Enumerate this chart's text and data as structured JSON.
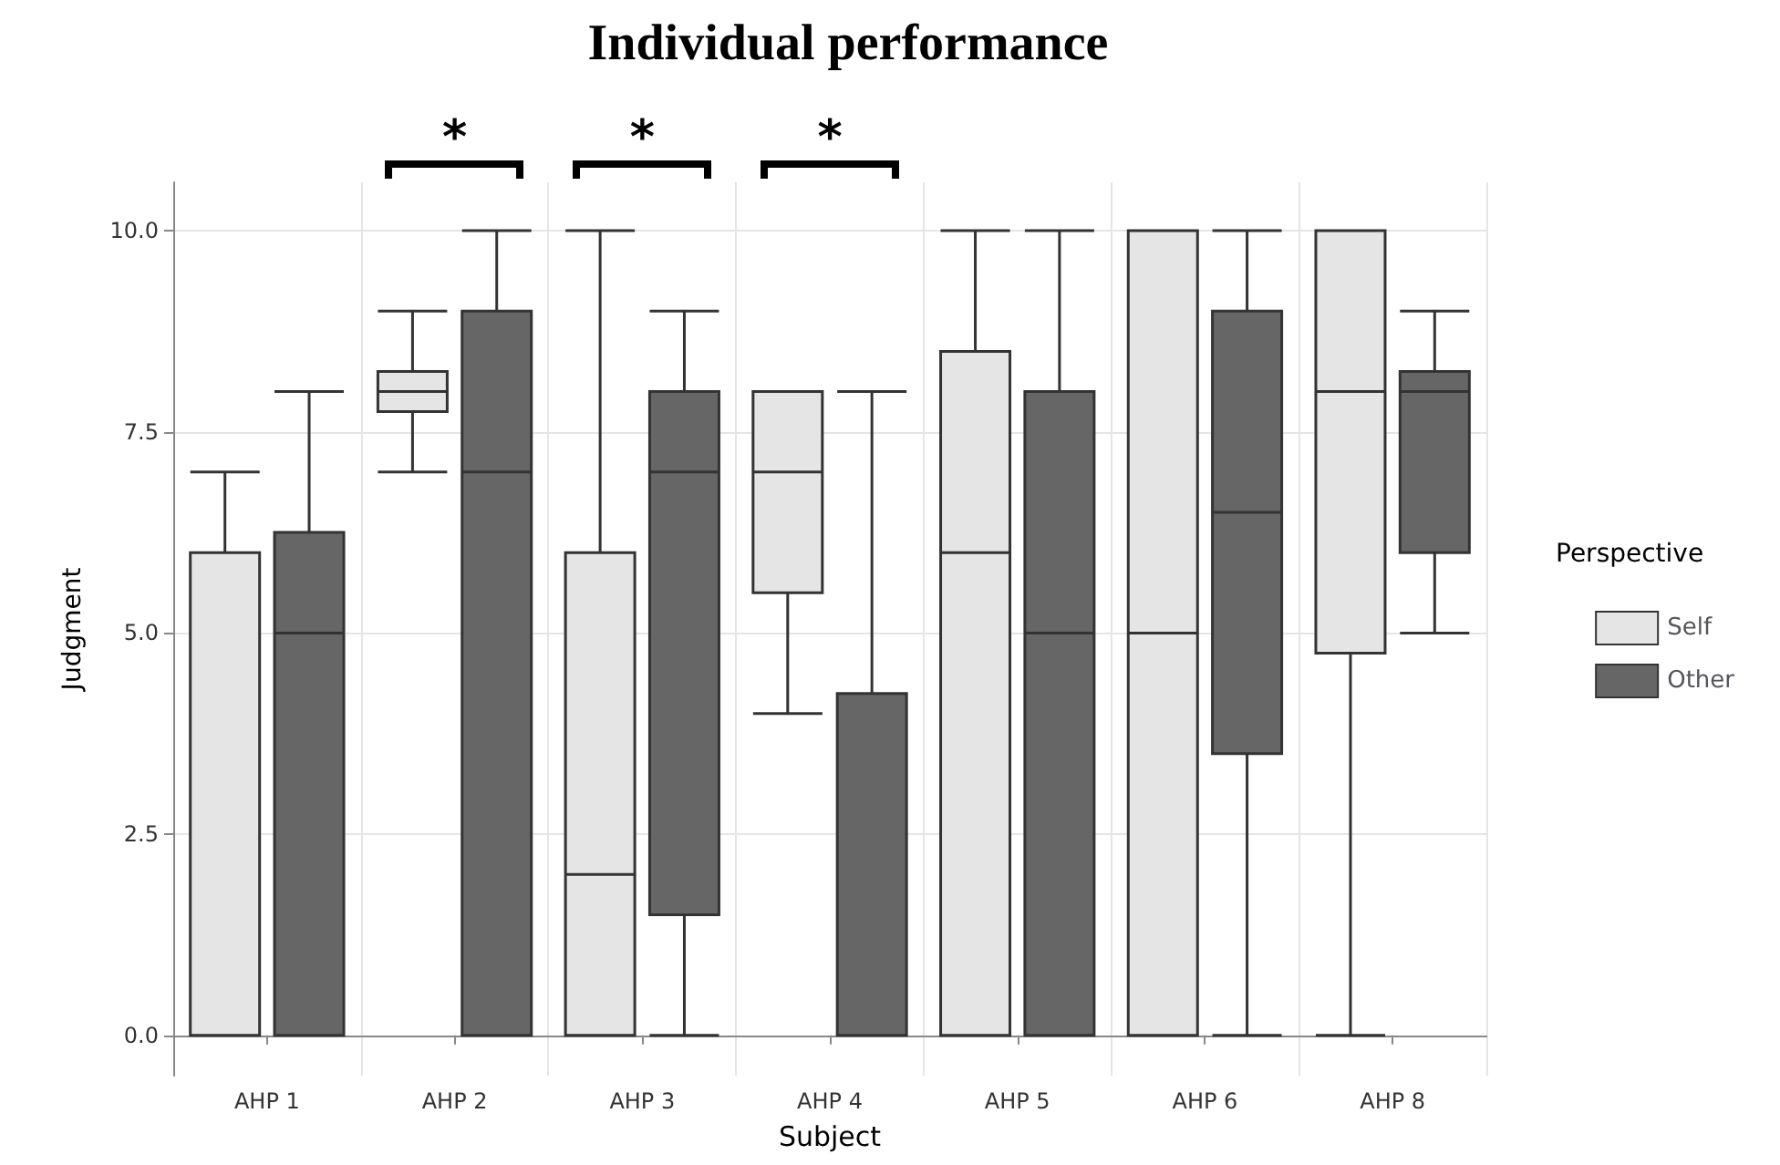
{
  "chart_data": {
    "type": "box",
    "title": "Individual performance",
    "xlabel": "Subject",
    "ylabel": "Judgment",
    "legend_title": "Perspective",
    "legend": "right",
    "grid": true,
    "categories": [
      "AHP 1",
      "AHP 2",
      "AHP 3",
      "AHP 4",
      "AHP 5",
      "AHP 6",
      "AHP 8"
    ],
    "ylim": [
      -0.5,
      10.6
    ],
    "yticks": [
      {
        "value": 0,
        "label": "0.0"
      },
      {
        "value": 2.5,
        "label": "2.5"
      },
      {
        "value": 5,
        "label": "5.0"
      },
      {
        "value": 7.5,
        "label": "7.5"
      },
      {
        "value": 10,
        "label": "10.0"
      }
    ],
    "series": [
      {
        "name": "Self",
        "color": "#e5e5e5",
        "boxes": [
          {
            "low": 0,
            "q1": 0,
            "median": 6,
            "q3": 6,
            "high": 7
          },
          {
            "low": 7,
            "q1": 7.75,
            "median": 8,
            "q3": 8.25,
            "high": 9
          },
          {
            "low": 0,
            "q1": 0,
            "median": 2,
            "q3": 6,
            "high": 10
          },
          {
            "low": 4,
            "q1": 5.5,
            "median": 7,
            "q3": 8,
            "high": 8
          },
          {
            "low": 0,
            "q1": 0,
            "median": 6,
            "q3": 8.5,
            "high": 10
          },
          {
            "low": 0,
            "q1": 0,
            "median": 5,
            "q3": 10,
            "high": 10
          },
          {
            "low": 0,
            "q1": 4.75,
            "median": 8,
            "q3": 10,
            "high": 10
          }
        ]
      },
      {
        "name": "Other",
        "color": "#666666",
        "boxes": [
          {
            "low": 0,
            "q1": 0,
            "median": 5,
            "q3": 6.25,
            "high": 8
          },
          {
            "low": 0,
            "q1": 0,
            "median": 7,
            "q3": 9,
            "high": 10
          },
          {
            "low": 0,
            "q1": 1.5,
            "median": 7,
            "q3": 8,
            "high": 9
          },
          {
            "low": 0,
            "q1": 0,
            "median": 0,
            "q3": 4.25,
            "high": 8
          },
          {
            "low": 0,
            "q1": 0,
            "median": 5,
            "q3": 8,
            "high": 10
          },
          {
            "low": 0,
            "q1": 3.5,
            "median": 6.5,
            "q3": 9,
            "high": 10
          },
          {
            "low": 5,
            "q1": 6,
            "median": 8,
            "q3": 8.25,
            "high": 9
          }
        ]
      }
    ],
    "annotations": [
      "*",
      "*",
      "*"
    ]
  }
}
